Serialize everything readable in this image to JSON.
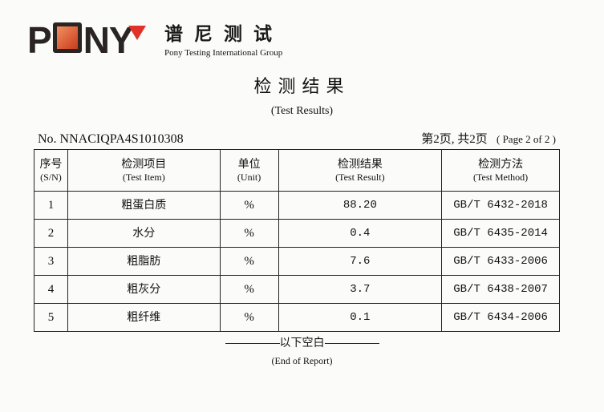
{
  "header": {
    "logo_text": "PONY",
    "brand_cn": "谱尼测试",
    "brand_en": "Pony Testing International Group",
    "brand_color": "#e0322a"
  },
  "document": {
    "title_cn": "检测结果",
    "title_en": "(Test Results)",
    "report_no": "No. NNACIQPA4S1010308",
    "page_cn": "第2页, 共2页",
    "page_en": "( Page 2   of 2 )"
  },
  "table": {
    "headers": [
      {
        "cn": "序号",
        "en": "(S/N)"
      },
      {
        "cn": "检测项目",
        "en": "(Test Item)"
      },
      {
        "cn": "单位",
        "en": "(Unit)"
      },
      {
        "cn": "检测结果",
        "en": "(Test Result)"
      },
      {
        "cn": "检测方法",
        "en": "(Test Method)"
      }
    ],
    "rows": [
      {
        "sn": "1",
        "item": "粗蛋白质",
        "unit": "%",
        "result": "88.20",
        "method": "GB/T 6432-2018"
      },
      {
        "sn": "2",
        "item": "水分",
        "unit": "%",
        "result": "0.4",
        "method": "GB/T 6435-2014"
      },
      {
        "sn": "3",
        "item": "粗脂肪",
        "unit": "%",
        "result": "7.6",
        "method": "GB/T 6433-2006"
      },
      {
        "sn": "4",
        "item": "粗灰分",
        "unit": "%",
        "result": "3.7",
        "method": "GB/T 6438-2007"
      },
      {
        "sn": "5",
        "item": "粗纤维",
        "unit": "%",
        "result": "0.1",
        "method": "GB/T 6434-2006"
      }
    ]
  },
  "footer": {
    "end_cn": "以下空白",
    "end_en": "(End of Report)"
  }
}
